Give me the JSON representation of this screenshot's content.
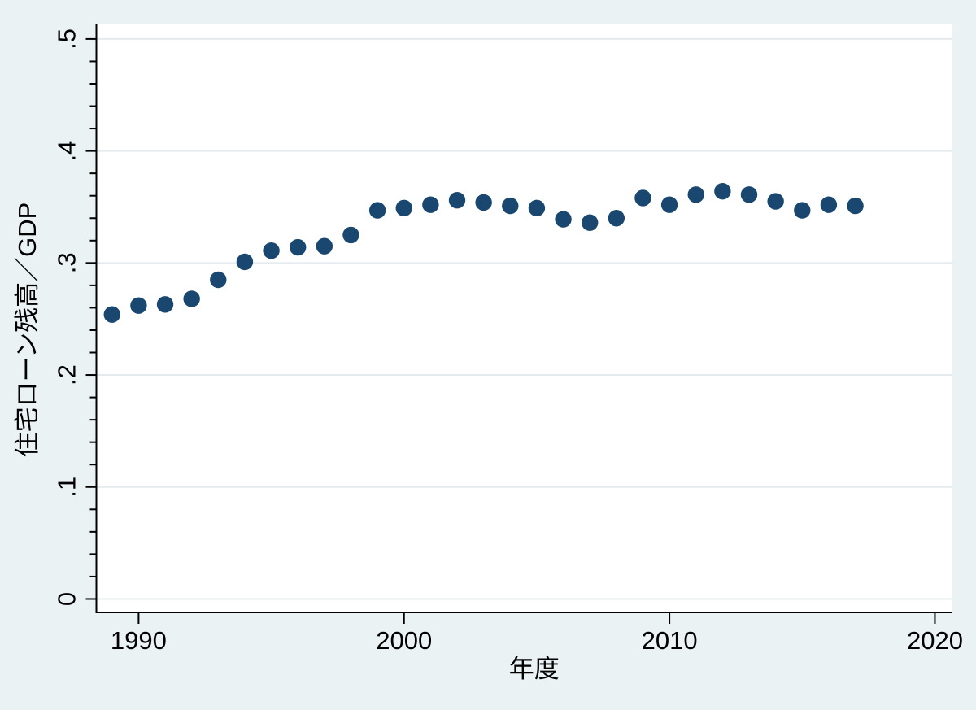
{
  "chart_data": {
    "type": "scatter",
    "title": "",
    "xlabel": "年度",
    "ylabel": "住宅ローン残高／GDP",
    "x": [
      1989,
      1990,
      1991,
      1992,
      1993,
      1994,
      1995,
      1996,
      1997,
      1998,
      1999,
      2000,
      2001,
      2002,
      2003,
      2004,
      2005,
      2006,
      2007,
      2008,
      2009,
      2010,
      2011,
      2012,
      2013,
      2014,
      2015,
      2016,
      2017
    ],
    "y": [
      0.254,
      0.262,
      0.263,
      0.268,
      0.285,
      0.301,
      0.311,
      0.314,
      0.315,
      0.325,
      0.347,
      0.349,
      0.352,
      0.356,
      0.354,
      0.351,
      0.349,
      0.339,
      0.336,
      0.34,
      0.358,
      0.352,
      0.361,
      0.364,
      0.361,
      0.355,
      0.347,
      0.352,
      0.351
    ],
    "x_ticks": [
      1990,
      2000,
      2010,
      2020
    ],
    "x_tick_labels": [
      "1990",
      "2000",
      "2010",
      "2020"
    ],
    "y_ticks": [
      0,
      0.1,
      0.2,
      0.3,
      0.4,
      0.5
    ],
    "y_tick_labels": [
      "0",
      ".1",
      ".2",
      ".3",
      ".4",
      ".5"
    ],
    "y_minor_step": 0.02,
    "xlim": [
      1988.41,
      2020.66
    ],
    "ylim": [
      -0.012,
      0.513
    ],
    "grid": true,
    "legend": "none",
    "colors": {
      "marker": "#1a476f",
      "background": "#eaf2f3",
      "plot_background": "#ffffff",
      "gridline": "#e4ebee",
      "axis": "#000000"
    }
  }
}
